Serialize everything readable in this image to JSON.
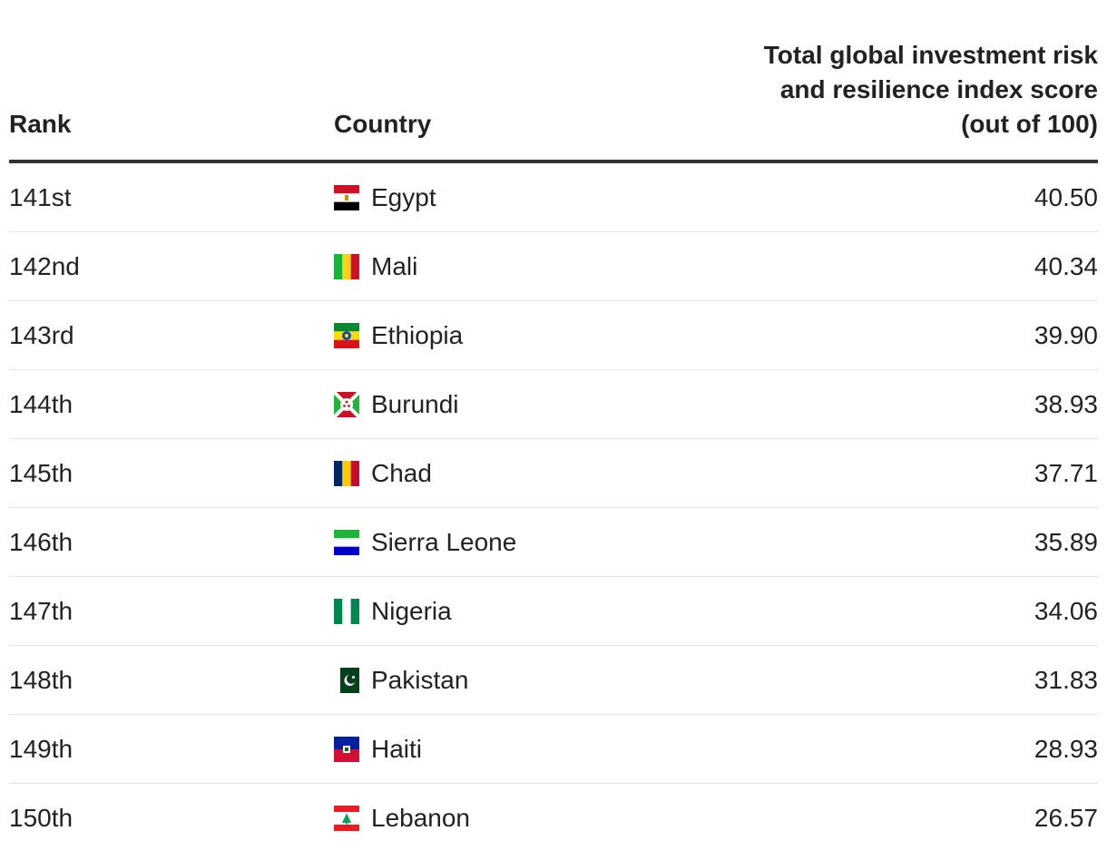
{
  "chart_data": {
    "type": "table",
    "columns": [
      "Rank",
      "Country",
      "Total global investment risk and resilience index score (out of 100)"
    ],
    "header": {
      "rank": "Rank",
      "country": "Country",
      "score_lines": [
        "Total global investment risk",
        "and resilience index score",
        "(out of 100)"
      ]
    },
    "rows": [
      {
        "rank": "141st",
        "country": "Egypt",
        "flag": "egypt-flag-icon",
        "score": "40.50"
      },
      {
        "rank": "142nd",
        "country": "Mali",
        "flag": "mali-flag-icon",
        "score": "40.34"
      },
      {
        "rank": "143rd",
        "country": "Ethiopia",
        "flag": "ethiopia-flag-icon",
        "score": "39.90"
      },
      {
        "rank": "144th",
        "country": "Burundi",
        "flag": "burundi-flag-icon",
        "score": "38.93"
      },
      {
        "rank": "145th",
        "country": "Chad",
        "flag": "chad-flag-icon",
        "score": "37.71"
      },
      {
        "rank": "146th",
        "country": "Sierra Leone",
        "flag": "sierra-leone-flag-icon",
        "score": "35.89"
      },
      {
        "rank": "147th",
        "country": "Nigeria",
        "flag": "nigeria-flag-icon",
        "score": "34.06"
      },
      {
        "rank": "148th",
        "country": "Pakistan",
        "flag": "pakistan-flag-icon",
        "score": "31.83"
      },
      {
        "rank": "149th",
        "country": "Haiti",
        "flag": "haiti-flag-icon",
        "score": "28.93"
      },
      {
        "rank": "150th",
        "country": "Lebanon",
        "flag": "lebanon-flag-icon",
        "score": "26.57"
      }
    ]
  }
}
